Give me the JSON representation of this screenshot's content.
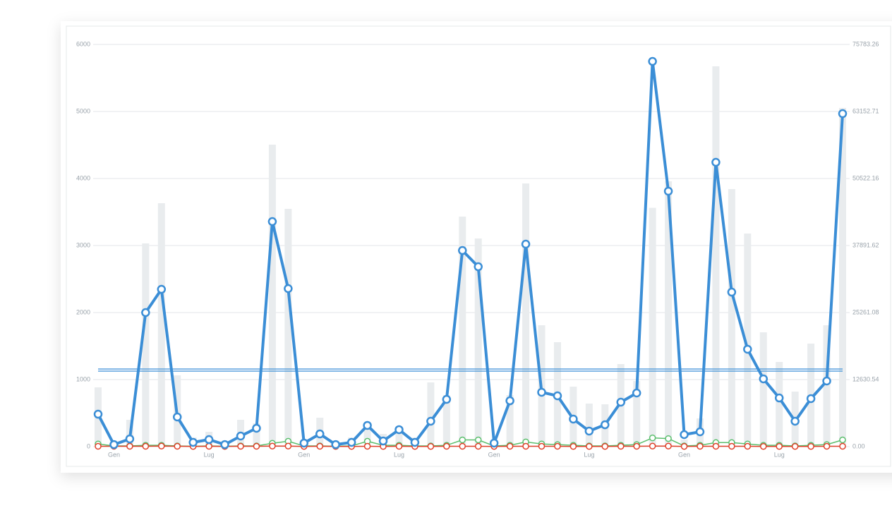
{
  "chart_data": {
    "type": "combo",
    "categories": [
      null,
      "Gen",
      null,
      null,
      null,
      null,
      null,
      "Lug",
      null,
      null,
      null,
      null,
      null,
      "Gen",
      null,
      null,
      null,
      null,
      null,
      "Lug",
      null,
      null,
      null,
      null,
      null,
      "Gen",
      null,
      null,
      null,
      null,
      null,
      "Lug",
      null,
      null,
      null,
      null,
      null,
      "Gen",
      null,
      null,
      null,
      null,
      null,
      "Lug",
      null,
      null,
      null,
      null
    ],
    "ylim": [
      0,
      6000
    ],
    "yticks": [
      0,
      1000,
      2000,
      3000,
      4000,
      5000,
      6000
    ],
    "y2lim": [
      0,
      75783.26
    ],
    "y2ticks": [
      {
        "value": 0,
        "label": "0.00"
      },
      12630.54,
      25261.08,
      37891.62,
      50522.16,
      63152.71,
      75783.26
    ],
    "grid": true,
    "hlines": [
      1158,
      1126
    ],
    "hline_color": "#3b8ed6",
    "series": [
      {
        "type": "bar",
        "axis": "y2",
        "color": "#e9ecee",
        "values": [
          11168,
          665,
          5052,
          38290,
          45868,
          13428,
          1728,
          2792,
          1064,
          5052,
          4387,
          56903,
          44804,
          1064,
          5451,
          1064,
          1728,
          4387,
          2393,
          3723,
          1728,
          12098,
          9705,
          43342,
          39220,
          1064,
          9705,
          49590,
          22867,
          19677,
          11301,
          8110,
          7977,
          15555,
          12364,
          45000,
          50000,
          1330,
          5318,
          71660,
          48527,
          40150,
          21538,
          15954,
          10370,
          19411,
          22867,
          63816
        ]
      },
      {
        "type": "line",
        "color": "#5cbf6e",
        "values": [
          40,
          10,
          10,
          20,
          20,
          10,
          5,
          10,
          5,
          10,
          10,
          50,
          80,
          10,
          10,
          5,
          10,
          80,
          20,
          20,
          10,
          10,
          20,
          100,
          100,
          10,
          20,
          70,
          40,
          30,
          20,
          10,
          10,
          20,
          30,
          130,
          120,
          10,
          20,
          60,
          60,
          40,
          20,
          20,
          10,
          20,
          30,
          100
        ]
      },
      {
        "type": "line",
        "color": "#e0412a",
        "values": [
          5,
          5,
          5,
          5,
          8,
          5,
          3,
          5,
          3,
          5,
          5,
          8,
          8,
          3,
          5,
          3,
          3,
          5,
          3,
          5,
          3,
          3,
          5,
          5,
          5,
          3,
          5,
          5,
          5,
          5,
          3,
          3,
          3,
          5,
          5,
          8,
          8,
          3,
          5,
          5,
          5,
          5,
          3,
          3,
          3,
          3,
          5,
          5
        ]
      },
      {
        "type": "line",
        "color": "#3b8ed6",
        "values": [
          484,
          30,
          115,
          2000,
          2347,
          442,
          63,
          105,
          30,
          158,
          274,
          3358,
          2358,
          53,
          189,
          30,
          63,
          316,
          84,
          253,
          63,
          379,
          705,
          2926,
          2684,
          53,
          684,
          3021,
          811,
          758,
          411,
          232,
          326,
          663,
          800,
          5747,
          3811,
          179,
          221,
          4242,
          2305,
          1453,
          1011,
          726,
          379,
          716,
          979,
          4968
        ]
      }
    ]
  }
}
